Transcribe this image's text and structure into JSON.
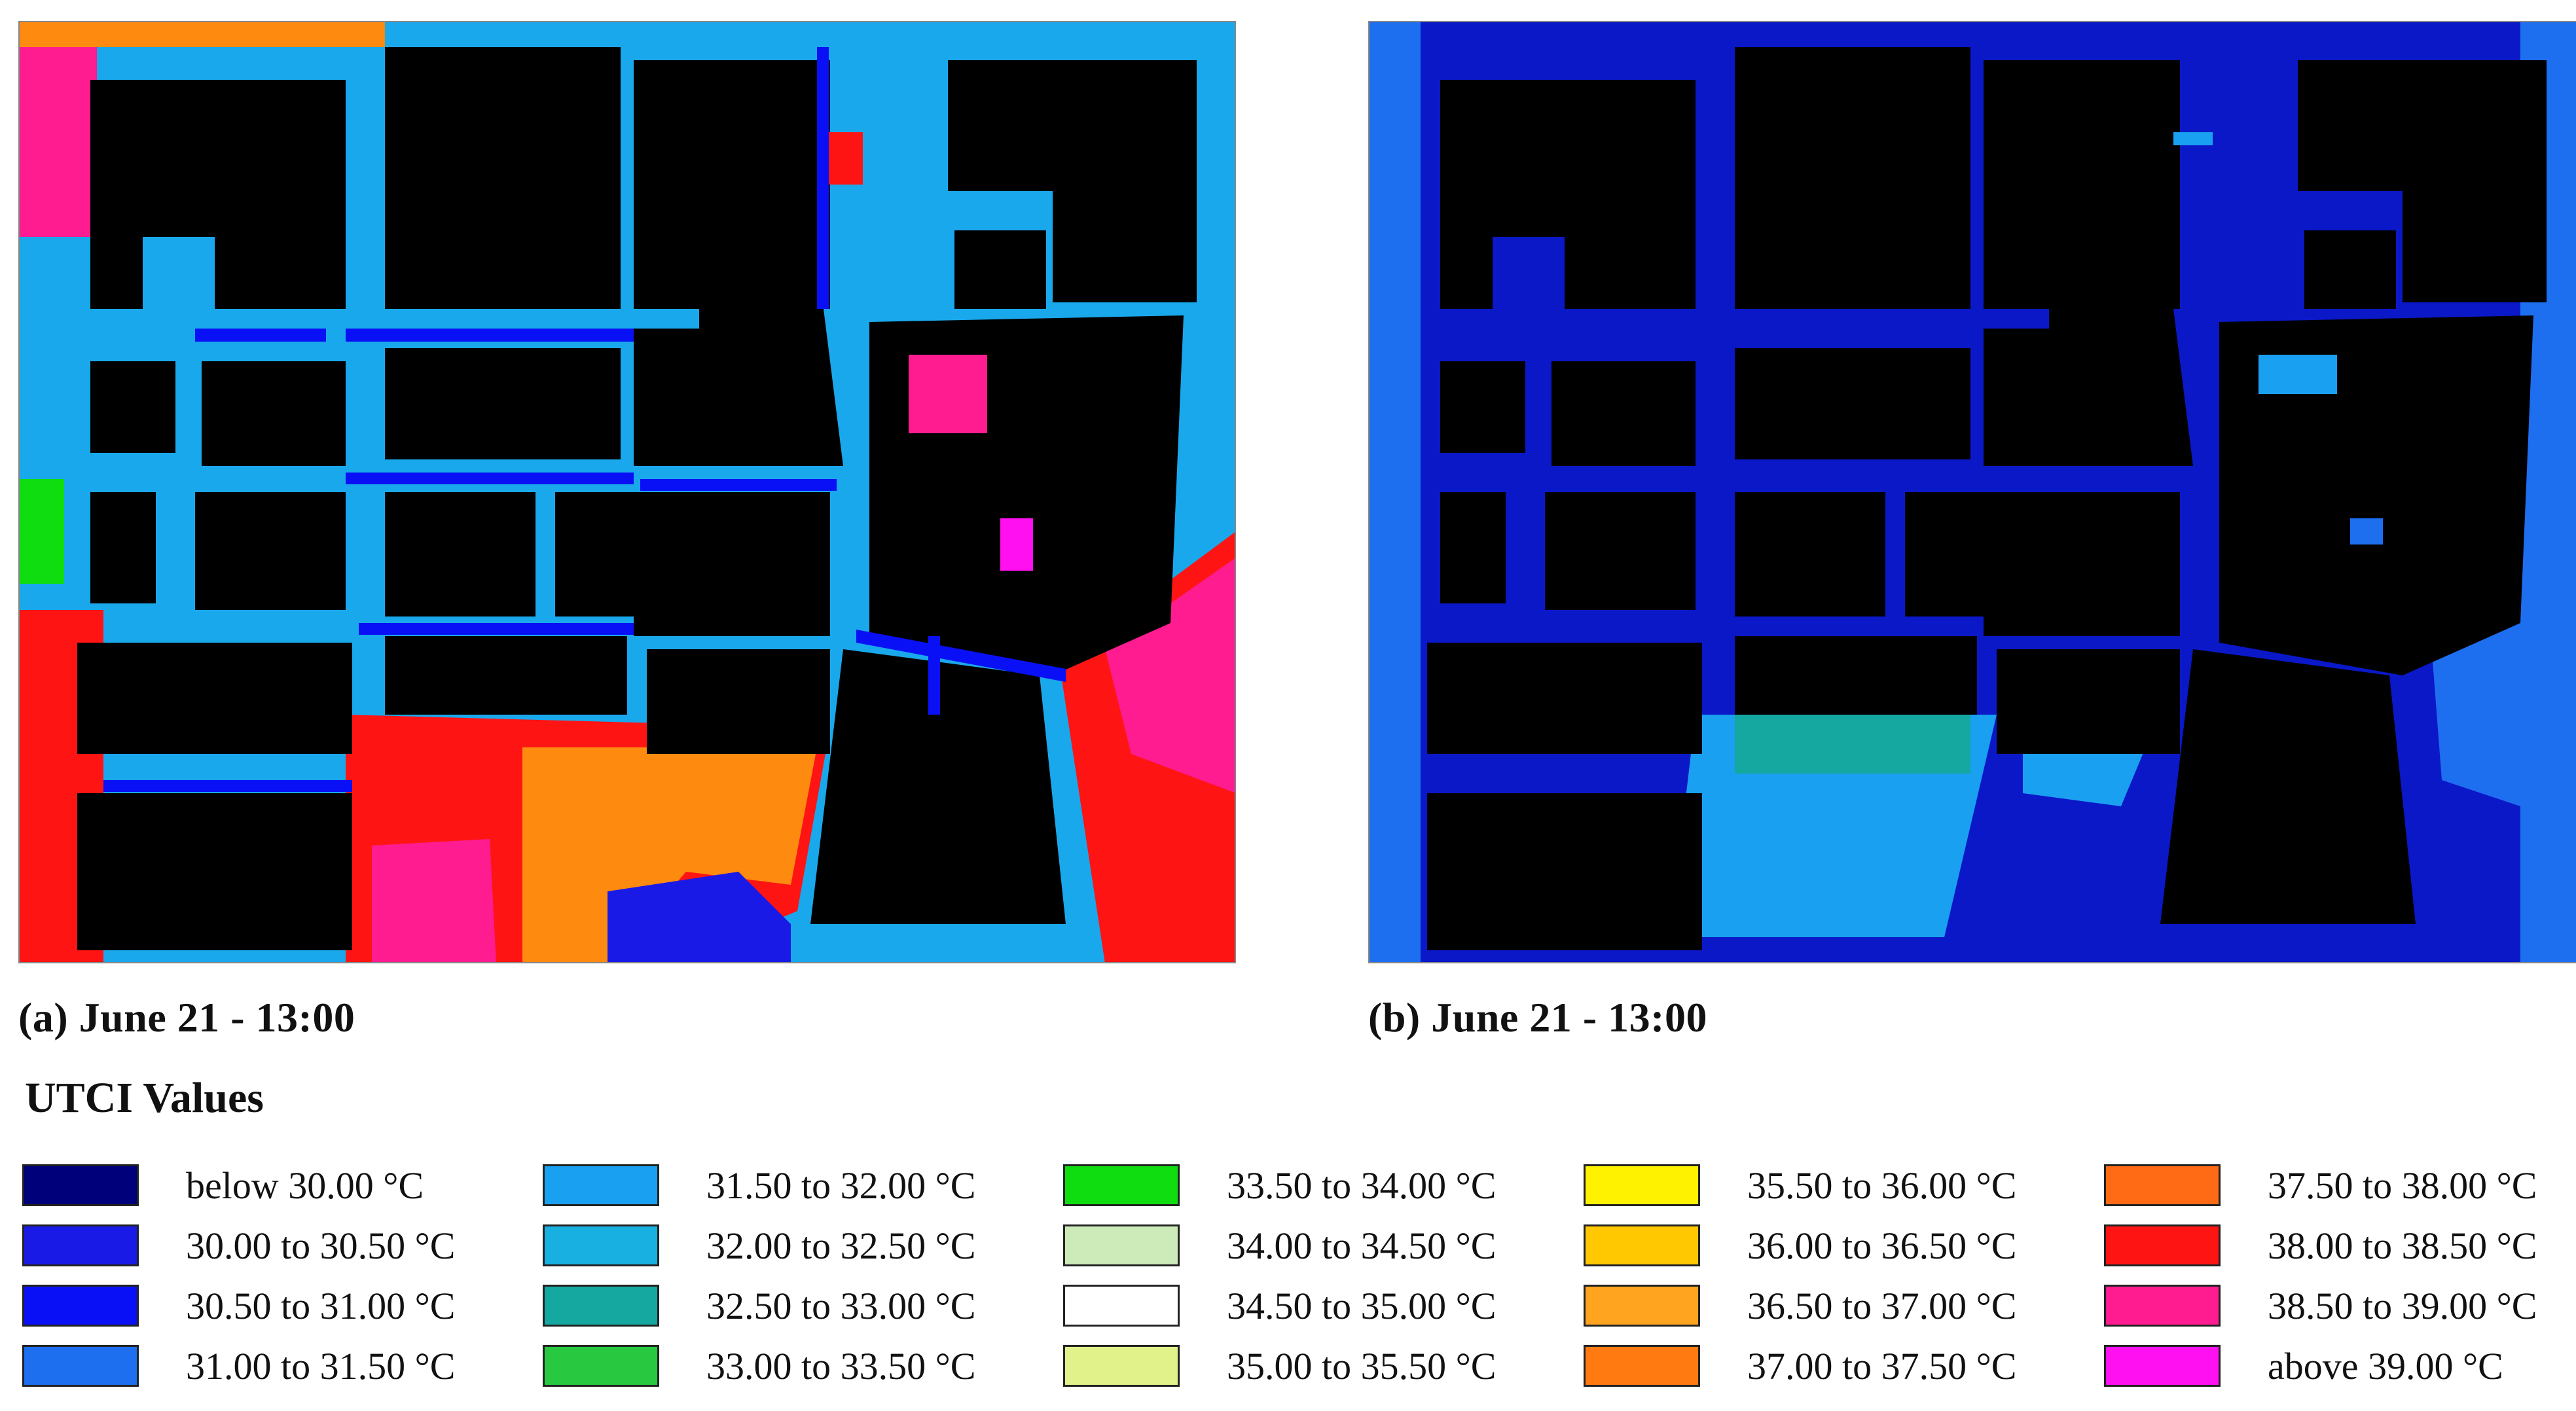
{
  "figure": {
    "panel_a": {
      "caption": "(a) June 21 - 13:00"
    },
    "panel_b": {
      "caption": "(b) June 21 - 13:00"
    },
    "legend": {
      "title": "UTCI Values",
      "items": [
        {
          "label": "below 30.00 °C",
          "color": "#00007a"
        },
        {
          "label": "30.00 to 30.50 °C",
          "color": "#1a1ae6"
        },
        {
          "label": "30.50 to 31.00 °C",
          "color": "#0a10f5"
        },
        {
          "label": "31.00 to 31.50 °C",
          "color": "#1e6ef0"
        },
        {
          "label": "31.50 to 32.00 °C",
          "color": "#1aa0f0"
        },
        {
          "label": "32.00 to 32.50 °C",
          "color": "#18b0e0"
        },
        {
          "label": "32.50 to 33.00 °C",
          "color": "#14a8a0"
        },
        {
          "label": "33.00 to 33.50 °C",
          "color": "#28c840"
        },
        {
          "label": "33.50 to 34.00 °C",
          "color": "#10dd10"
        },
        {
          "label": "34.00 to 34.50 °C",
          "color": "#ccebb8"
        },
        {
          "label": "34.50 to 35.00 °C",
          "color": "#ffffff"
        },
        {
          "label": "35.00 to 35.50 °C",
          "color": "#e2f28a"
        },
        {
          "label": "35.50 to 36.00 °C",
          "color": "#fff200"
        },
        {
          "label": "36.00 to 36.50 °C",
          "color": "#ffc800"
        },
        {
          "label": "36.50 to 37.00 °C",
          "color": "#ffa41e"
        },
        {
          "label": "37.00 to 37.50 °C",
          "color": "#ff7a10"
        },
        {
          "label": "37.50 to 38.00 °C",
          "color": "#ff6a14"
        },
        {
          "label": "38.00 to 38.50 °C",
          "color": "#ff1414"
        },
        {
          "label": "38.50 to 39.00 °C",
          "color": "#ff1c90"
        },
        {
          "label": "above 39.00 °C",
          "color": "#ff10f0"
        }
      ]
    }
  },
  "colors": {
    "building": "#000000",
    "street_a": "#1aa8ec",
    "street_b": "#0a18c8",
    "hot_zone": "#ff1414",
    "very_hot_zone": "#ff1c90",
    "warm_zone": "#ff8a10"
  }
}
